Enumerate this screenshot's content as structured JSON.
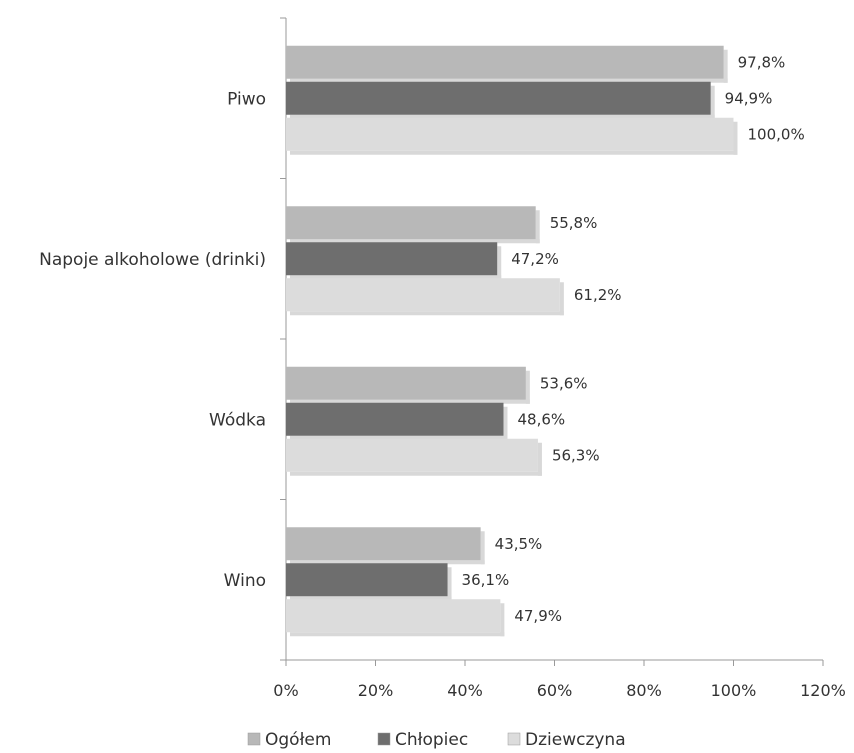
{
  "chart_data": {
    "type": "bar",
    "orientation": "horizontal",
    "title": "",
    "xlabel": "",
    "ylabel": "",
    "categories": [
      "Piwo",
      "Napoje alkoholowe (drinki)",
      "Wódka",
      "Wino"
    ],
    "series": [
      {
        "name": "Ogółem",
        "color": "#b8b8b8",
        "values": [
          97.8,
          55.8,
          53.6,
          43.5
        ],
        "labels": [
          "97,8%",
          "55,8%",
          "53,6%",
          "43,5%"
        ]
      },
      {
        "name": "Chłopiec",
        "color": "#6e6e6e",
        "values": [
          94.9,
          47.2,
          48.6,
          36.1
        ],
        "labels": [
          "94,9%",
          "47,2%",
          "48,6%",
          "36,1%"
        ]
      },
      {
        "name": "Dziewczyna",
        "color": "#dcdcdc",
        "values": [
          100.0,
          61.2,
          56.3,
          47.9
        ],
        "labels": [
          "100,0%",
          "61,2%",
          "56,3%",
          "47,9%"
        ]
      }
    ],
    "xlim": [
      0,
      120
    ],
    "xticks": [
      0,
      20,
      40,
      60,
      80,
      100,
      120
    ],
    "xtick_labels": [
      "0%",
      "20%",
      "40%",
      "60%",
      "80%",
      "100%",
      "120%"
    ],
    "grid": false,
    "legend_position": "bottom"
  }
}
